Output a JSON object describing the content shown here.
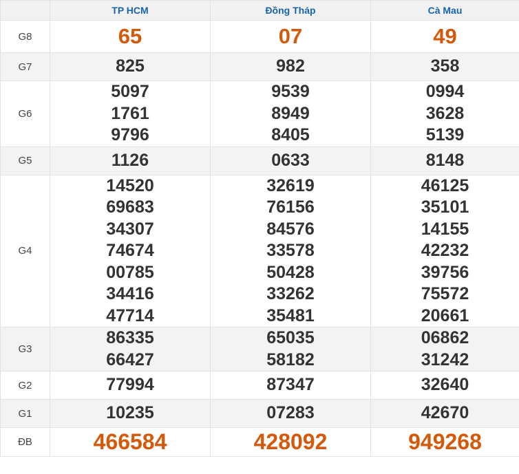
{
  "header": {
    "label_col": "",
    "provinces": [
      "TP HCM",
      "Đồng Tháp",
      "Cà Mau"
    ]
  },
  "highlight_color": "#d35a0b",
  "header_text_color": "#1a64ad",
  "rows": [
    {
      "label": "G8",
      "values": [
        [
          "65"
        ],
        [
          "07"
        ],
        [
          "49"
        ]
      ]
    },
    {
      "label": "G7",
      "values": [
        [
          "825"
        ],
        [
          "982"
        ],
        [
          "358"
        ]
      ]
    },
    {
      "label": "G6",
      "values": [
        [
          "5097",
          "1761",
          "9796"
        ],
        [
          "9539",
          "8949",
          "8405"
        ],
        [
          "0994",
          "3628",
          "5139"
        ]
      ]
    },
    {
      "label": "G5",
      "values": [
        [
          "1126"
        ],
        [
          "0633"
        ],
        [
          "8148"
        ]
      ]
    },
    {
      "label": "G4",
      "values": [
        [
          "14520",
          "69683",
          "34307",
          "74674",
          "00785",
          "34416",
          "47714"
        ],
        [
          "32619",
          "76156",
          "84576",
          "33578",
          "50428",
          "33262",
          "35481"
        ],
        [
          "46125",
          "35101",
          "14155",
          "42232",
          "39756",
          "75572",
          "20661"
        ]
      ]
    },
    {
      "label": "G3",
      "values": [
        [
          "86335",
          "66427"
        ],
        [
          "65035",
          "58182"
        ],
        [
          "06862",
          "31242"
        ]
      ]
    },
    {
      "label": "G2",
      "values": [
        [
          "77994"
        ],
        [
          "87347"
        ],
        [
          "32640"
        ]
      ]
    },
    {
      "label": "G1",
      "values": [
        [
          "10235"
        ],
        [
          "07283"
        ],
        [
          "42670"
        ]
      ]
    },
    {
      "label": "ĐB",
      "values": [
        [
          "466584"
        ],
        [
          "428092"
        ],
        [
          "949268"
        ]
      ]
    }
  ]
}
